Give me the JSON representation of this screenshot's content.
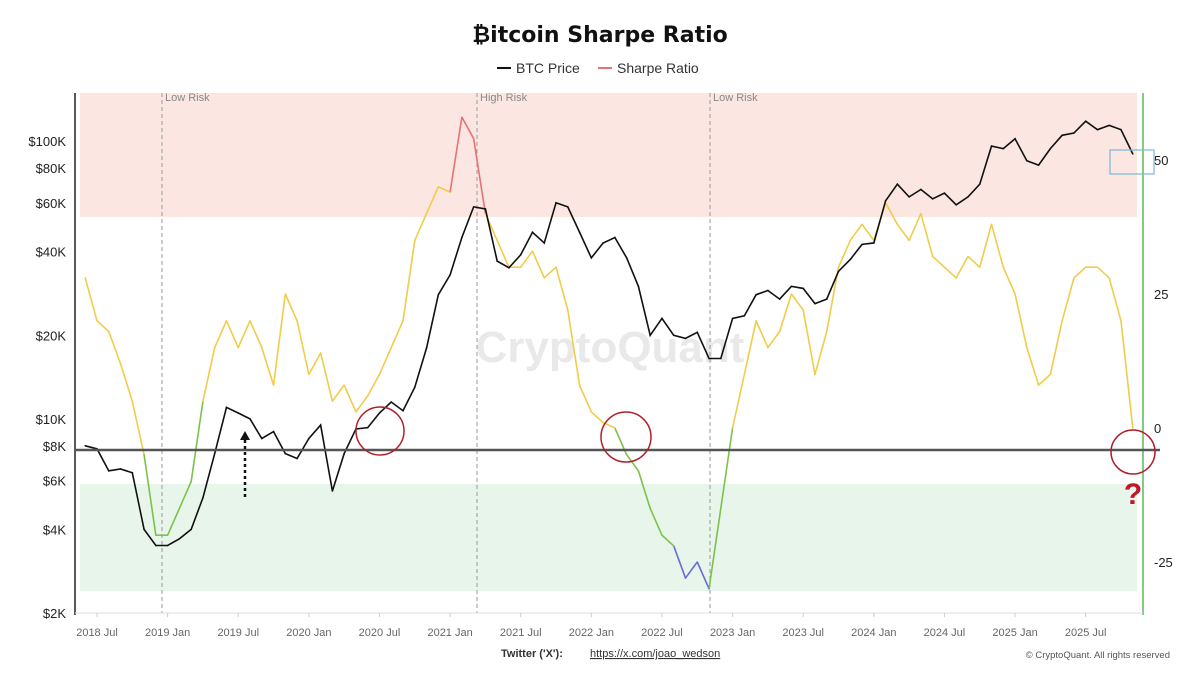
{
  "chart_data": {
    "type": "line",
    "title": "₿itcoin Sharpe Ratio",
    "legend": {
      "placement": "top-center",
      "entries": [
        {
          "name": "BTC Price",
          "color": "#111111"
        },
        {
          "name": "Sharpe Ratio",
          "color": "#e57373"
        }
      ]
    },
    "x": [
      "2018-06",
      "2018-07",
      "2018-08",
      "2018-09",
      "2018-10",
      "2018-11",
      "2018-12",
      "2019-01",
      "2019-02",
      "2019-03",
      "2019-04",
      "2019-05",
      "2019-06",
      "2019-07",
      "2019-08",
      "2019-09",
      "2019-10",
      "2019-11",
      "2019-12",
      "2020-01",
      "2020-02",
      "2020-03",
      "2020-04",
      "2020-05",
      "2020-06",
      "2020-07",
      "2020-08",
      "2020-09",
      "2020-10",
      "2020-11",
      "2020-12",
      "2021-01",
      "2021-02",
      "2021-03",
      "2021-04",
      "2021-05",
      "2021-06",
      "2021-07",
      "2021-08",
      "2021-09",
      "2021-10",
      "2021-11",
      "2021-12",
      "2022-01",
      "2022-02",
      "2022-03",
      "2022-04",
      "2022-05",
      "2022-06",
      "2022-07",
      "2022-08",
      "2022-09",
      "2022-10",
      "2022-11",
      "2022-12",
      "2023-01",
      "2023-02",
      "2023-03",
      "2023-04",
      "2023-05",
      "2023-06",
      "2023-07",
      "2023-08",
      "2023-09",
      "2023-10",
      "2023-11",
      "2023-12",
      "2024-01",
      "2024-02",
      "2024-03",
      "2024-04",
      "2024-05",
      "2024-06",
      "2024-07",
      "2024-08",
      "2024-09",
      "2024-10",
      "2024-11",
      "2024-12",
      "2025-01",
      "2025-02",
      "2025-03",
      "2025-04",
      "2025-05",
      "2025-06",
      "2025-07",
      "2025-08",
      "2025-09",
      "2025-10",
      "2025-11"
    ],
    "series": [
      {
        "name": "BTC Price",
        "axis": "left",
        "values": [
          8000,
          7800,
          6500,
          6600,
          6400,
          4000,
          3500,
          3500,
          3700,
          4000,
          5200,
          7500,
          11000,
          10500,
          10000,
          8500,
          9000,
          7500,
          7200,
          8500,
          9500,
          5500,
          7500,
          9200,
          9300,
          10500,
          11500,
          10700,
          13000,
          18000,
          28000,
          33000,
          45000,
          58000,
          57000,
          37000,
          35000,
          39000,
          47000,
          43000,
          60000,
          58000,
          47000,
          38000,
          43000,
          45000,
          38000,
          30000,
          20000,
          23000,
          20000,
          19500,
          20500,
          16500,
          16500,
          23000,
          23500,
          28000,
          29000,
          27000,
          30000,
          29500,
          26000,
          27000,
          34000,
          37500,
          42500,
          43000,
          61000,
          70000,
          63000,
          67000,
          62000,
          65000,
          59000,
          63000,
          70000,
          96000,
          94000,
          102000,
          85000,
          82000,
          94000,
          105000,
          107000,
          118000,
          110000,
          114000,
          110000,
          90000
        ]
      },
      {
        "name": "Sharpe Ratio",
        "axis": "right",
        "values": [
          28,
          20,
          18,
          12,
          5,
          -5,
          -20,
          -20,
          -15,
          -10,
          5,
          15,
          20,
          15,
          20,
          15,
          8,
          25,
          20,
          10,
          14,
          5,
          8,
          3,
          6,
          10,
          15,
          20,
          35,
          40,
          45,
          44,
          58,
          54,
          40,
          35,
          30,
          30,
          33,
          28,
          30,
          22,
          8,
          3,
          1,
          0,
          -5,
          -8,
          -15,
          -20,
          -22,
          -28,
          -25,
          -30,
          -15,
          0,
          10,
          20,
          15,
          18,
          25,
          22,
          10,
          18,
          30,
          35,
          38,
          35,
          42,
          38,
          35,
          40,
          32,
          30,
          28,
          32,
          30,
          38,
          30,
          25,
          15,
          8,
          10,
          20,
          28,
          30,
          30,
          28,
          20,
          0
        ]
      }
    ],
    "sharpe_colors": {
      "high": "#e57373",
      "neutral": "#f0cc4a",
      "low": "#7cc24a",
      "very_low": "#6a6ad8"
    },
    "left_axis": {
      "scale": "log",
      "ticks": [
        "$2K",
        "$4K",
        "$6K",
        "$8K",
        "$10K",
        "$20K",
        "$40K",
        "$60K",
        "$80K",
        "$100K"
      ]
    },
    "right_axis": {
      "ticks": [
        "50",
        "25",
        "0",
        "-25"
      ],
      "range": [
        -35,
        62
      ]
    },
    "x_ticks": [
      "2018 Jul",
      "2019 Jan",
      "2019 Jul",
      "2020 Jan",
      "2020 Jul",
      "2021 Jan",
      "2021 Jul",
      "2022 Jan",
      "2022 Jul",
      "2023 Jan",
      "2023 Jul",
      "2024 Jan",
      "2024 Jul",
      "2025 Jan",
      "2025 Jul"
    ],
    "annotations": [
      "Low Risk",
      "High Risk",
      "Low Risk"
    ],
    "question_mark": "?",
    "watermark": "CryptoQuant",
    "bands": {
      "high_risk_color": "#fbe6e2",
      "low_risk_color": "#e8f5ea"
    }
  },
  "footer": {
    "twitter_label": "Twitter ('X'):",
    "twitter_link": "https://x.com/joao_wedson",
    "copyright": "© CryptoQuant. All rights reserved"
  }
}
